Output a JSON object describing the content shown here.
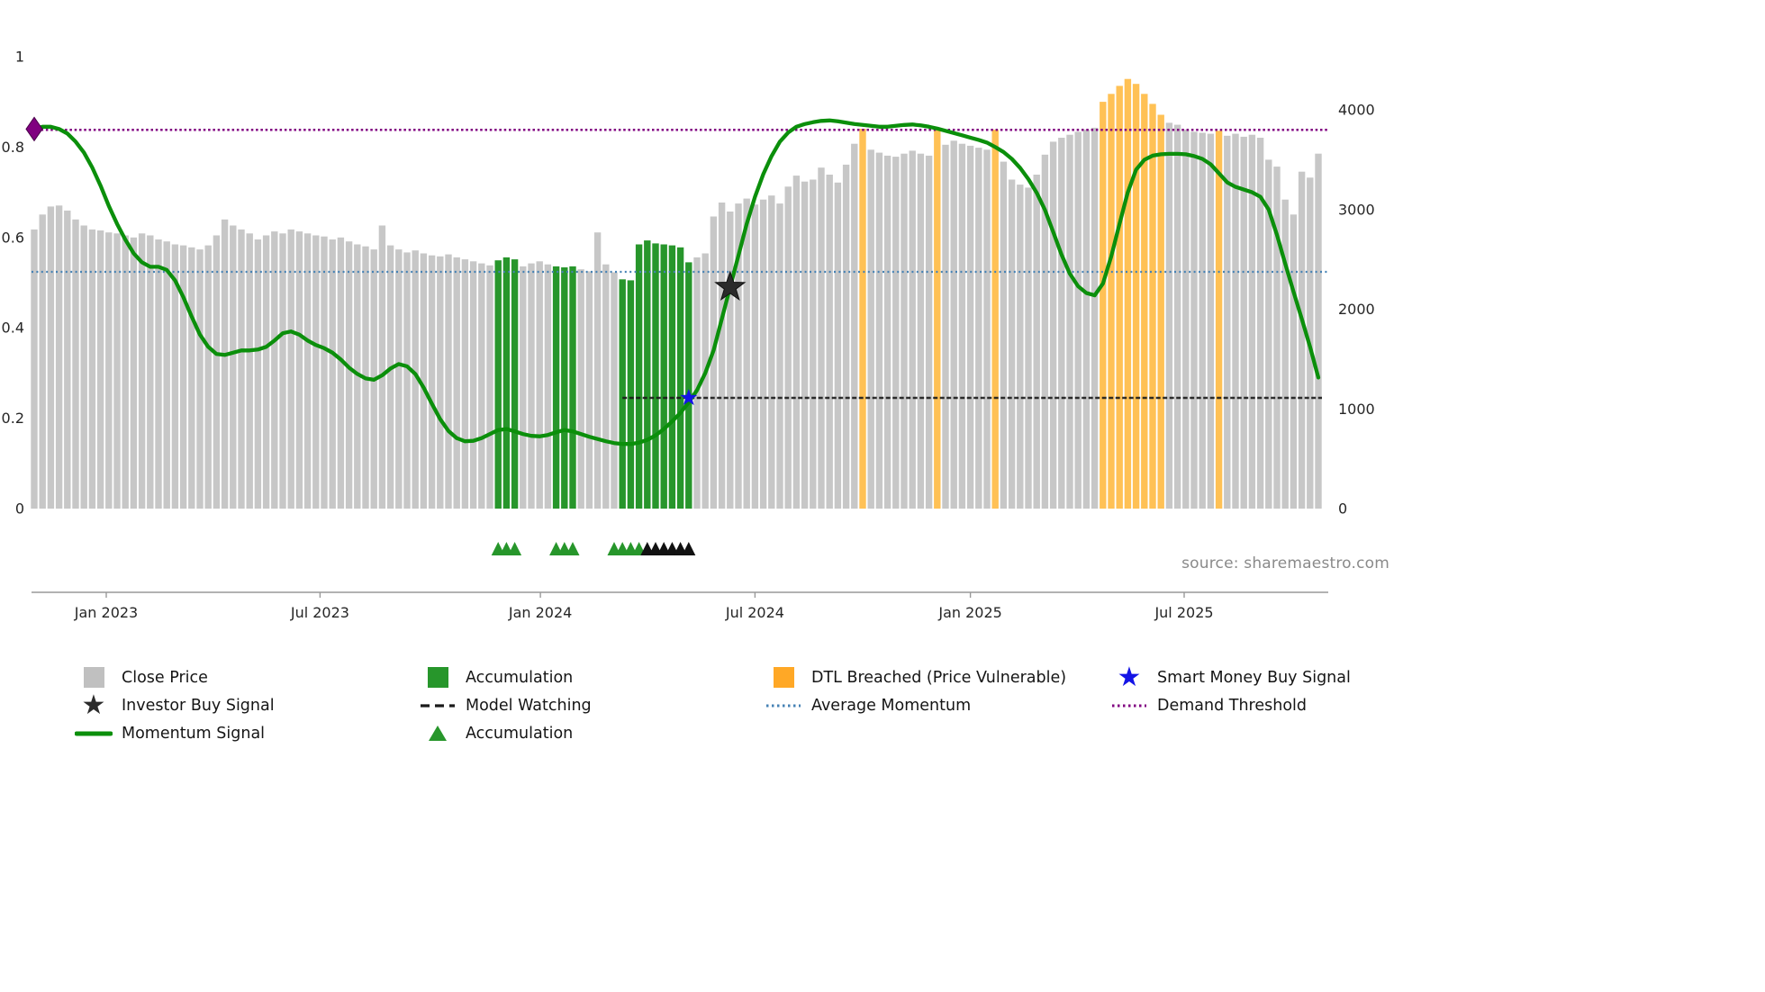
{
  "source_text": "source: sharemaestro.com",
  "colors": {
    "bar_gray": "#c7c7c7",
    "bar_green": "#27962b",
    "bar_orange": "#ffc155",
    "momentum_line": "#0b8f0b",
    "avg_momentum": "#4682b4",
    "demand_threshold": "#800080",
    "model_watching": "#1a1a1a",
    "smart_money_star": "#1414e6",
    "investor_star": "#2b2b2b",
    "diamond": "#800080",
    "axis_text": "#262626",
    "axis_line": "#999999",
    "legend_gray": "#c0c0c0",
    "legend_green": "#27962b",
    "legend_orange": "#ffa826"
  },
  "axes": {
    "left_tick_labels": [
      "0",
      "0.2",
      "0.4",
      "0.6",
      "0.8",
      "1"
    ],
    "left_tick_values": [
      0,
      0.2,
      0.4,
      0.6,
      0.8,
      1
    ],
    "right_tick_labels": [
      "0",
      "1000",
      "2000",
      "3000",
      "4000"
    ],
    "right_tick_values": [
      0,
      1000,
      2000,
      3000,
      4000
    ],
    "x_tick_labels": [
      "Jan 2023",
      "Jul 2023",
      "Jan 2024",
      "Jul 2024",
      "Jan 2025",
      "Jul 2025"
    ],
    "x_tick_indices": [
      8.7,
      34.5,
      61.1,
      87.0,
      113.0,
      138.8
    ]
  },
  "chart_data": {
    "type": "bar+line",
    "n_points": 156,
    "series_names": [
      "Close Price",
      "Momentum Signal"
    ],
    "ylim_left_momentum": [
      0,
      1
    ],
    "ylim_right_price": [
      0,
      4000
    ],
    "close_price": [
      2800,
      2950,
      3030,
      3040,
      2990,
      2900,
      2840,
      2800,
      2790,
      2770,
      2760,
      2740,
      2720,
      2760,
      2740,
      2700,
      2680,
      2650,
      2640,
      2620,
      2600,
      2640,
      2740,
      2900,
      2840,
      2800,
      2760,
      2700,
      2740,
      2780,
      2760,
      2800,
      2780,
      2760,
      2740,
      2730,
      2700,
      2720,
      2680,
      2650,
      2630,
      2600,
      2840,
      2640,
      2600,
      2570,
      2590,
      2560,
      2540,
      2530,
      2550,
      2520,
      2500,
      2480,
      2460,
      2440,
      2490,
      2520,
      2500,
      2430,
      2460,
      2480,
      2450,
      2430,
      2420,
      2430,
      2400,
      2380,
      2770,
      2450,
      2370,
      2300,
      2290,
      2650,
      2690,
      2660,
      2650,
      2640,
      2620,
      2470,
      2520,
      2560,
      2930,
      3070,
      2980,
      3060,
      3110,
      3050,
      3100,
      3140,
      3060,
      3230,
      3340,
      3280,
      3300,
      3420,
      3350,
      3270,
      3450,
      3660,
      3810,
      3600,
      3570,
      3540,
      3530,
      3560,
      3590,
      3560,
      3540,
      3820,
      3650,
      3690,
      3660,
      3640,
      3620,
      3600,
      3800,
      3480,
      3300,
      3250,
      3220,
      3350,
      3550,
      3680,
      3720,
      3750,
      3780,
      3800,
      3820,
      4080,
      4160,
      4240,
      4310,
      4260,
      4160,
      4060,
      3950,
      3870,
      3850,
      3800,
      3780,
      3770,
      3760,
      3790,
      3740,
      3760,
      3730,
      3750,
      3720,
      3500,
      3430,
      3100,
      2950,
      3380,
      3320,
      3560
    ],
    "momentum": [
      0.84,
      0.845,
      0.845,
      0.84,
      0.83,
      0.812,
      0.788,
      0.755,
      0.715,
      0.67,
      0.63,
      0.595,
      0.565,
      0.545,
      0.535,
      0.535,
      0.528,
      0.505,
      0.468,
      0.425,
      0.385,
      0.358,
      0.342,
      0.34,
      0.345,
      0.35,
      0.35,
      0.352,
      0.358,
      0.372,
      0.388,
      0.392,
      0.385,
      0.372,
      0.362,
      0.355,
      0.345,
      0.33,
      0.312,
      0.298,
      0.288,
      0.285,
      0.295,
      0.31,
      0.32,
      0.315,
      0.298,
      0.268,
      0.232,
      0.198,
      0.172,
      0.156,
      0.149,
      0.15,
      0.156,
      0.165,
      0.174,
      0.176,
      0.171,
      0.165,
      0.161,
      0.16,
      0.163,
      0.169,
      0.174,
      0.171,
      0.165,
      0.159,
      0.154,
      0.149,
      0.145,
      0.143,
      0.143,
      0.146,
      0.152,
      0.162,
      0.176,
      0.193,
      0.212,
      0.235,
      0.262,
      0.3,
      0.35,
      0.42,
      0.49,
      0.56,
      0.63,
      0.69,
      0.74,
      0.78,
      0.812,
      0.832,
      0.845,
      0.851,
      0.855,
      0.858,
      0.859,
      0.857,
      0.854,
      0.851,
      0.849,
      0.847,
      0.845,
      0.845,
      0.847,
      0.849,
      0.85,
      0.848,
      0.845,
      0.841,
      0.836,
      0.831,
      0.826,
      0.821,
      0.816,
      0.81,
      0.8,
      0.789,
      0.774,
      0.754,
      0.729,
      0.699,
      0.661,
      0.612,
      0.562,
      0.52,
      0.492,
      0.477,
      0.472,
      0.498,
      0.558,
      0.63,
      0.7,
      0.75,
      0.772,
      0.781,
      0.784,
      0.785,
      0.785,
      0.784,
      0.78,
      0.774,
      0.762,
      0.742,
      0.722,
      0.712,
      0.706,
      0.7,
      0.69,
      0.662,
      0.606,
      0.542,
      0.48,
      0.42,
      0.358,
      0.29
    ],
    "green_bar_indices": [
      56,
      57,
      58,
      63,
      64,
      65,
      71,
      72,
      73,
      74,
      75,
      76,
      77,
      78,
      79
    ],
    "dtl_breached_bar_indices": [
      100,
      109,
      116,
      129,
      130,
      131,
      132,
      133,
      134,
      135,
      136,
      143
    ],
    "average_momentum": 0.524,
    "demand_threshold": 0.838,
    "model_watching": {
      "value": 0.245,
      "start_index": 71
    },
    "markers": {
      "investor_buy_signal": {
        "index": 84,
        "momentum": 0.49
      },
      "smart_money_buy_signal": {
        "index": 79,
        "momentum": 0.245
      },
      "momentum_start_diamond": {
        "index": 0,
        "momentum": 0.84
      },
      "accumulation_triangles_green": [
        56,
        57,
        58,
        63,
        64,
        65,
        70,
        71,
        72,
        73
      ],
      "accumulation_triangles_black": [
        74,
        75,
        76,
        77,
        78,
        79
      ]
    }
  },
  "legend": {
    "columns": [
      {
        "items": [
          {
            "key": "close-price",
            "swatch": "square",
            "color_key": "legend_gray",
            "label": "Close Price"
          },
          {
            "key": "investor-buy-signal",
            "swatch": "star",
            "color_key": "investor_star",
            "label": "Investor Buy Signal"
          },
          {
            "key": "momentum-signal",
            "swatch": "line",
            "color_key": "momentum_line",
            "label": "Momentum Signal"
          }
        ]
      },
      {
        "items": [
          {
            "key": "accumulation-bars",
            "swatch": "square",
            "color_key": "legend_green",
            "label": "Accumulation"
          },
          {
            "key": "model-watching",
            "swatch": "dashes",
            "color_key": "model_watching",
            "label": "Model Watching"
          },
          {
            "key": "accumulation-triangle",
            "swatch": "triangle",
            "color_key": "legend_green",
            "label": "Accumulation"
          }
        ]
      },
      {
        "items": [
          {
            "key": "dtl-breached",
            "swatch": "square",
            "color_key": "legend_orange",
            "label": "DTL Breached (Price Vulnerable)"
          },
          {
            "key": "average-momentum",
            "swatch": "dots",
            "color_key": "avg_momentum",
            "label": "Average Momentum"
          }
        ]
      },
      {
        "items": [
          {
            "key": "smart-money-buy-signal",
            "swatch": "star",
            "color_key": "smart_money_star",
            "label": "Smart Money Buy Signal"
          },
          {
            "key": "demand-threshold",
            "swatch": "dots",
            "color_key": "demand_threshold",
            "label": "Demand Threshold"
          }
        ]
      }
    ]
  }
}
